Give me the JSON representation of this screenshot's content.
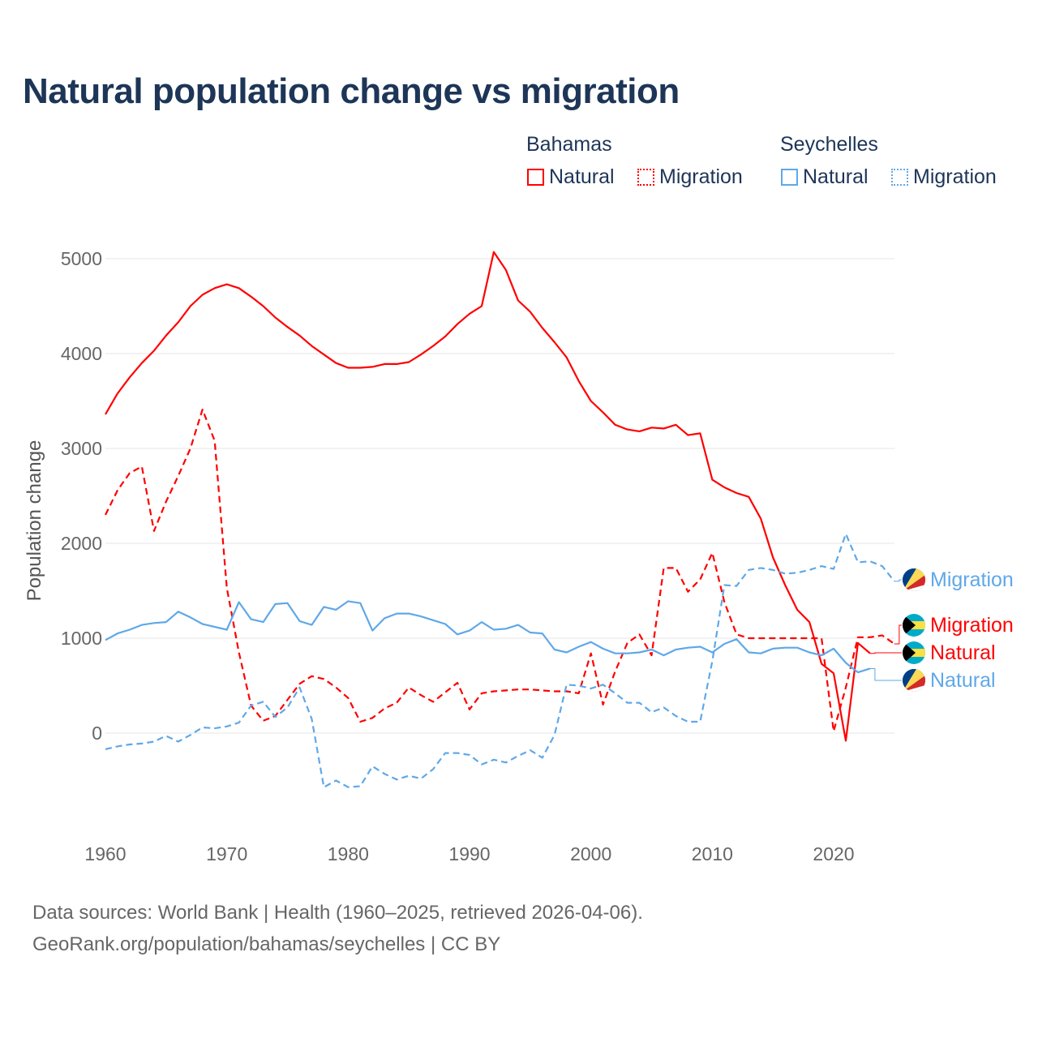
{
  "title": "Natural population change vs migration",
  "legend": {
    "groups": [
      {
        "name": "Bahamas",
        "color": "#ff0000",
        "items": [
          "Natural",
          "Migration"
        ]
      },
      {
        "name": "Seychelles",
        "color": "#5fa8e8",
        "items": [
          "Natural",
          "Migration"
        ]
      }
    ]
  },
  "footer": {
    "line1": "Data sources: World Bank | Health (1960–2025, retrieved 2026-04-06).",
    "line2": "GeoRank.org/population/bahamas/seychelles | CC BY"
  },
  "chart_data": {
    "type": "line",
    "title": "Natural population change vs migration",
    "xlabel": "",
    "ylabel": "Population change",
    "xlim": [
      1960,
      2025
    ],
    "ylim": [
      -900,
      5200
    ],
    "xticks": [
      1960,
      1970,
      1980,
      1990,
      2000,
      2010,
      2020
    ],
    "yticks": [
      0,
      1000,
      2000,
      3000,
      4000,
      5000
    ],
    "grid": true,
    "legend_position": "top-right",
    "start_year": 1960,
    "series": [
      {
        "name": "Bahamas Natural",
        "label": "Natural",
        "country": "Bahamas",
        "color": "#ff0000",
        "dash": false,
        "values": [
          3360,
          3580,
          3750,
          3900,
          4030,
          4190,
          4330,
          4500,
          4620,
          4690,
          4730,
          4690,
          4600,
          4500,
          4380,
          4280,
          4190,
          4080,
          3990,
          3900,
          3850,
          3850,
          3860,
          3890,
          3890,
          3910,
          3990,
          4080,
          4180,
          4310,
          4420,
          4500,
          5070,
          4880,
          4560,
          4440,
          4270,
          4120,
          3960,
          3710,
          3500,
          3380,
          3250,
          3200,
          3180,
          3220,
          3210,
          3250,
          3140,
          3160,
          2670,
          2590,
          2530,
          2490,
          2260,
          1850,
          1560,
          1300,
          1170,
          730,
          630,
          -80,
          950,
          840
        ]
      },
      {
        "name": "Bahamas Migration",
        "label": "Migration",
        "country": "Bahamas",
        "color": "#ff0000",
        "dash": true,
        "values": [
          2300,
          2560,
          2740,
          2810,
          2130,
          2440,
          2710,
          3000,
          3410,
          3080,
          1530,
          850,
          290,
          130,
          180,
          350,
          520,
          600,
          570,
          480,
          370,
          120,
          160,
          260,
          320,
          480,
          400,
          330,
          430,
          530,
          250,
          420,
          440,
          450,
          460,
          460,
          450,
          440,
          440,
          420,
          840,
          300,
          650,
          950,
          1040,
          820,
          1740,
          1740,
          1490,
          1620,
          1900,
          1380,
          1040,
          1000,
          1000,
          1000,
          1000,
          1000,
          1000,
          1000,
          20,
          480,
          1010,
          1010,
          1030,
          940
        ]
      },
      {
        "name": "Seychelles Natural",
        "label": "Natural",
        "country": "Seychelles",
        "color": "#5fa8e8",
        "dash": false,
        "values": [
          980,
          1050,
          1090,
          1140,
          1160,
          1170,
          1280,
          1220,
          1150,
          1120,
          1090,
          1380,
          1200,
          1170,
          1360,
          1370,
          1180,
          1140,
          1330,
          1300,
          1390,
          1370,
          1080,
          1210,
          1260,
          1260,
          1230,
          1190,
          1150,
          1040,
          1080,
          1170,
          1090,
          1100,
          1140,
          1060,
          1050,
          880,
          850,
          910,
          960,
          890,
          840,
          840,
          850,
          880,
          820,
          880,
          900,
          910,
          850,
          940,
          990,
          850,
          840,
          890,
          900,
          900,
          850,
          820,
          890,
          740,
          640,
          680
        ]
      },
      {
        "name": "Seychelles Migration",
        "label": "Migration",
        "country": "Seychelles",
        "color": "#5fa8e8",
        "dash": true,
        "values": [
          -170,
          -140,
          -120,
          -110,
          -90,
          -30,
          -90,
          -20,
          60,
          50,
          70,
          110,
          290,
          330,
          170,
          270,
          480,
          150,
          -570,
          -500,
          -570,
          -560,
          -350,
          -430,
          -490,
          -450,
          -480,
          -380,
          -210,
          -210,
          -230,
          -330,
          -280,
          -310,
          -240,
          -180,
          -260,
          -20,
          510,
          500,
          470,
          510,
          420,
          320,
          320,
          220,
          270,
          180,
          120,
          120,
          760,
          1560,
          1550,
          1720,
          1740,
          1720,
          1680,
          1690,
          1720,
          1760,
          1730,
          2100,
          1800,
          1810,
          1760,
          1600
        ]
      }
    ],
    "end_labels": [
      {
        "series": "Seychelles Migration",
        "text": "Migration",
        "color": "#5fa8e8",
        "flag": "seychelles"
      },
      {
        "series": "Bahamas Migration",
        "text": "Migration",
        "color": "#ff0000",
        "flag": "bahamas"
      },
      {
        "series": "Bahamas Natural",
        "text": "Natural",
        "color": "#ff0000",
        "flag": "bahamas"
      },
      {
        "series": "Seychelles Natural",
        "text": "Natural",
        "color": "#5fa8e8",
        "flag": "seychelles"
      }
    ]
  }
}
